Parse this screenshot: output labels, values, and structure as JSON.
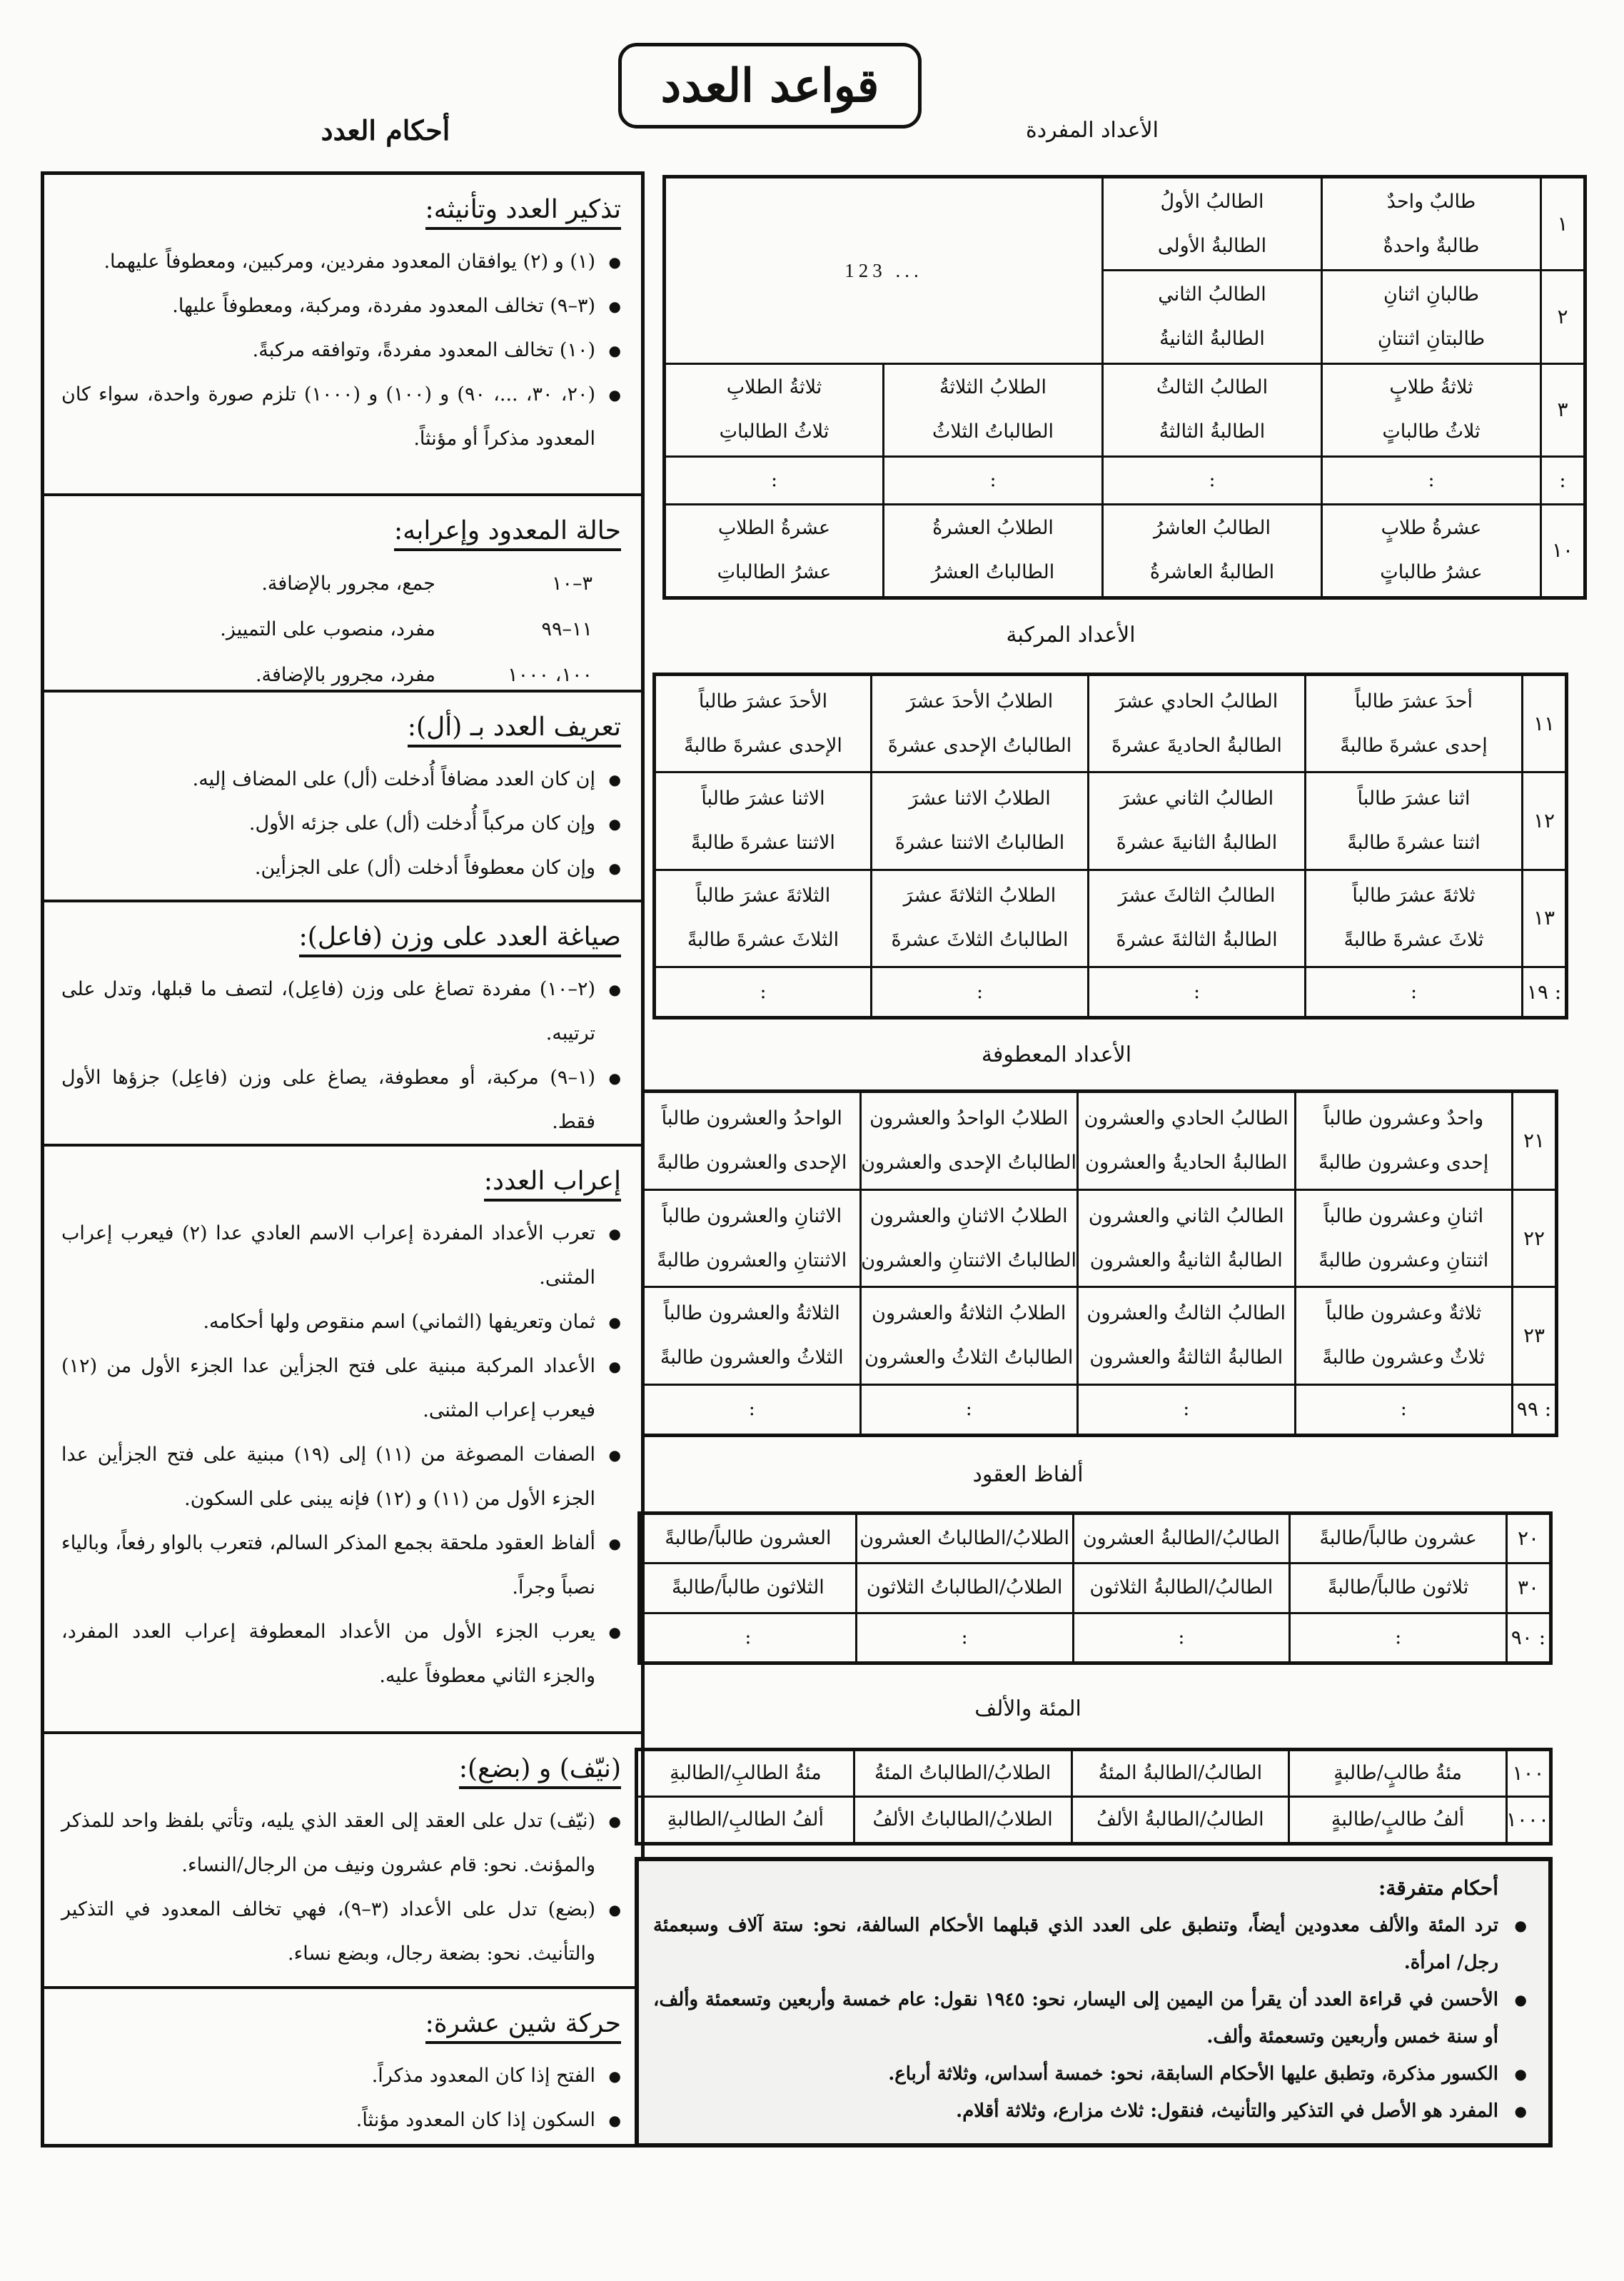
{
  "title": "قواعد العدد",
  "left_heading": "أحكام العدد",
  "headings": {
    "single": "الأعداد المفردة",
    "compound": "الأعداد المركبة",
    "conjoined": "الأعداد المعطوفة",
    "decades": "ألفاظ العقود",
    "hundred_thousand": "المئة والألف"
  },
  "big_numbers": "123 ...",
  "left_sections": [
    {
      "heading": "تذكير العدد وتأنيثه:",
      "bullets": [
        "(١) و (٢) يوافقان المعدود مفردين، ومركبين، ومعطوفاً عليهما.",
        "(٣–٩) تخالف المعدود مفردة، ومركبة، ومعطوفاً عليها.",
        "(١٠) تخالف المعدود مفردةً، وتوافقه مركبةً.",
        "(٢٠، ٣٠، ...، ٩٠) و (١٠٠) و (١٠٠٠) تلزم صورة واحدة، سواء كان المعدود مذكراً أو مؤنثاً."
      ]
    },
    {
      "heading": "حالة المعدود وإعرابه:",
      "rows": [
        [
          "٣–١٠",
          "جمع، مجرور بالإضافة."
        ],
        [
          "١١–٩٩",
          "مفرد، منصوب على التمييز."
        ],
        [
          "١٠٠، ١٠٠٠",
          "مفرد، مجرور بالإضافة."
        ]
      ]
    },
    {
      "heading": "تعريف العدد بـ (أل):",
      "bullets": [
        "إن كان العدد مضافاً أُدخلت (أل) على المضاف إليه.",
        "وإن كان مركباً أُدخلت (أل) على جزئه الأول.",
        "وإن كان معطوفاً أدخلت (أل) على الجزأين."
      ]
    },
    {
      "heading": "صياغة العدد على وزن (فاعل):",
      "bullets": [
        "(٢–١٠) مفردة تصاغ على وزن (فاعِل)، لتصف ما قبلها، وتدل على ترتيبه.",
        "(١–٩) مركبة، أو معطوفة، يصاغ على وزن (فاعِل) جزؤها الأول فقط."
      ]
    },
    {
      "heading": "إعراب العدد:",
      "bullets": [
        "تعرب الأعداد المفردة إعراب الاسم العادي عدا (٢) فيعرب إعراب المثنى.",
        "ثمان وتعريفها (الثماني) اسم منقوص ولها أحكامه.",
        "الأعداد المركبة مبنية على فتح الجزأين عدا الجزء الأول من (١٢) فيعرب إعراب المثنى.",
        "الصفات المصوغة من (١١) إلى (١٩) مبنية على فتح الجزأين عدا الجزء الأول من (١١) و (١٢) فإنه يبنى على السكون.",
        "ألفاظ العقود ملحقة بجمع المذكر السالم، فتعرب بالواو رفعاً، وبالياء نصباً وجراً.",
        "يعرب الجزء الأول من الأعداد المعطوفة إعراب العدد المفرد، والجزء الثاني معطوفاً عليه."
      ]
    },
    {
      "heading": "(نيّف) و (بضع):",
      "bullets": [
        "(نيّف) تدل على العقد إلى العقد الذي يليه، وتأتي بلفظ واحد للمذكر والمؤنث. نحو: قام عشرون ونيف من الرجال/النساء.",
        "(بضع) تدل على الأعداد (٣–٩)، فهي تخالف المعدود في التذكير والتأنيث. نحو: بضعة رجال، وبضع نساء."
      ]
    },
    {
      "heading": "حركة شين عشرة:",
      "bullets": [
        "الفتح إذا كان المعدود مذكراً.",
        "السكون إذا كان المعدود مؤنثاً."
      ]
    }
  ],
  "tables": {
    "single": [
      {
        "num": "١",
        "cells": [
          [
            "طالبٌ واحدٌ",
            "طالبةٌ واحدةٌ"
          ],
          [
            "الطالبُ الأولُ",
            "الطالبةُ الأولى"
          ]
        ]
      },
      {
        "num": "٢",
        "cells": [
          [
            "طالبانِ اثنانِ",
            "طالبتانِ اثنتانِ"
          ],
          [
            "الطالبُ الثاني",
            "الطالبةُ الثانيةُ"
          ]
        ]
      },
      {
        "num": "٣",
        "cells": [
          [
            "ثلاثةُ طلابٍ",
            "ثلاثُ طالباتٍ"
          ],
          [
            "الطالبُ الثالثُ",
            "الطالبةُ الثالثةُ"
          ],
          [
            "الطلابُ الثلاثةُ",
            "الطالباتُ الثلاثُ"
          ],
          [
            "ثلاثةُ الطلابِ",
            "ثلاثُ الطالباتِ"
          ]
        ]
      },
      {
        "num": ":",
        "cells": [
          [
            ":"
          ],
          [
            ":"
          ],
          [
            ":"
          ],
          [
            ":"
          ]
        ]
      },
      {
        "num": "١٠",
        "cells": [
          [
            "عشرةُ طلابٍ",
            "عشرُ طالباتٍ"
          ],
          [
            "الطالبُ العاشرُ",
            "الطالبةُ العاشرةُ"
          ],
          [
            "الطلابُ العشرةُ",
            "الطالباتُ العشرُ"
          ],
          [
            "عشرةُ الطلابِ",
            "عشرُ الطالباتِ"
          ]
        ]
      }
    ],
    "compound": [
      {
        "num": "١١",
        "cells": [
          [
            "أحدَ عشرَ طالباً",
            "إحدى عشرةَ طالبةً"
          ],
          [
            "الطالبُ الحادي عشرَ",
            "الطالبةُ الحاديةَ عشرةَ"
          ],
          [
            "الطلابُ الأحدَ عشرَ",
            "الطالباتُ الإحدى عشرةَ"
          ],
          [
            "الأحدَ عشرَ طالباً",
            "الإحدى عشرةَ طالبةً"
          ]
        ]
      },
      {
        "num": "١٢",
        "cells": [
          [
            "اثنا عشرَ طالباً",
            "اثنتا عشرةَ طالبةً"
          ],
          [
            "الطالبُ الثاني عشرَ",
            "الطالبةُ الثانيةَ عشرةَ"
          ],
          [
            "الطلابُ الاثنا عشرَ",
            "الطالباتُ الاثنتا عشرةَ"
          ],
          [
            "الاثنا عشرَ طالباً",
            "الاثنتا عشرةَ طالبةً"
          ]
        ]
      },
      {
        "num": "١٣",
        "cells": [
          [
            "ثلاثةَ عشرَ طالباً",
            "ثلاثَ عشرةَ طالبةً"
          ],
          [
            "الطالبُ الثالثَ عشرَ",
            "الطالبةُ الثالثةَ عشرةَ"
          ],
          [
            "الطلابُ الثلاثةَ عشرَ",
            "الطالباتُ الثلاثَ عشرةَ"
          ],
          [
            "الثلاثةَ عشرَ طالباً",
            "الثلاثَ عشرةَ طالبةً"
          ]
        ]
      },
      {
        "num": ": ١٩",
        "cells": [
          [
            ":"
          ],
          [
            ":"
          ],
          [
            ":"
          ],
          [
            ":"
          ]
        ]
      }
    ],
    "conjoined": [
      {
        "num": "٢١",
        "cells": [
          [
            "واحدٌ وعشرون طالباً",
            "إحدى وعشرون طالبةً"
          ],
          [
            "الطالبُ الحادي والعشرون",
            "الطالبةُ الحاديةُ والعشرون"
          ],
          [
            "الطلابُ الواحدُ والعشرون",
            "الطالباتُ الإحدى والعشرون"
          ],
          [
            "الواحدُ والعشرون طالباً",
            "الإحدى والعشرون طالبةً"
          ]
        ]
      },
      {
        "num": "٢٢",
        "cells": [
          [
            "اثنانِ وعشرون طالباً",
            "اثنتانِ وعشرون طالبةً"
          ],
          [
            "الطالبُ الثاني والعشرون",
            "الطالبةُ الثانيةُ والعشرون"
          ],
          [
            "الطلابُ الاثنانِ والعشرون",
            "الطالباتُ الاثنتانِ والعشرون"
          ],
          [
            "الاثنانِ والعشرون طالباً",
            "الاثنتانِ والعشرون طالبةً"
          ]
        ]
      },
      {
        "num": "٢٣",
        "cells": [
          [
            "ثلاثةٌ وعشرون طالباً",
            "ثلاثٌ وعشرون طالبةً"
          ],
          [
            "الطالبُ الثالثُ والعشرون",
            "الطالبةُ الثالثةُ والعشرون"
          ],
          [
            "الطلابُ الثلاثةُ والعشرون",
            "الطالباتُ الثلاثُ والعشرون"
          ],
          [
            "الثلاثةُ والعشرون طالباً",
            "الثلاثُ والعشرون طالبةً"
          ]
        ]
      },
      {
        "num": ": ٩٩",
        "cells": [
          [
            ":"
          ],
          [
            ":"
          ],
          [
            ":"
          ],
          [
            ":"
          ]
        ]
      }
    ],
    "decades": [
      {
        "num": "٢٠",
        "cells": [
          [
            "عشرون طالباً/طالبةً"
          ],
          [
            "الطالبُ/الطالبةُ العشرون"
          ],
          [
            "الطلابُ/الطالباتُ العشرون"
          ],
          [
            "العشرون طالباً/طالبةً"
          ]
        ]
      },
      {
        "num": "٣٠",
        "cells": [
          [
            "ثلاثون طالباً/طالبةً"
          ],
          [
            "الطالبُ/الطالبةُ الثلاثون"
          ],
          [
            "الطلابُ/الطالباتُ الثلاثون"
          ],
          [
            "الثلاثون طالباً/طالبةً"
          ]
        ]
      },
      {
        "num": ": ٩٠",
        "cells": [
          [
            ":"
          ],
          [
            ":"
          ],
          [
            ":"
          ],
          [
            ":"
          ]
        ]
      }
    ],
    "hundred_thousand": [
      {
        "num": "١٠٠",
        "cells": [
          [
            "مئةُ طالبٍ/طالبةٍ"
          ],
          [
            "الطالبُ/الطالبةُ المئةُ"
          ],
          [
            "الطلابُ/الطالباتُ المئةُ"
          ],
          [
            "مئةُ الطالبِ/الطالبةِ"
          ]
        ]
      },
      {
        "num": "١٠٠٠",
        "cells": [
          [
            "ألفُ طالبٍ/طالبةٍ"
          ],
          [
            "الطالبُ/الطالبةُ الألفُ"
          ],
          [
            "الطلابُ/الطالباتُ الألفُ"
          ],
          [
            "ألفُ الطالبِ/الطالبةِ"
          ]
        ]
      }
    ]
  },
  "misc": {
    "heading": "أحكام متفرقة:",
    "bullets": [
      "ترد المئة والألف معدودين أيضاً، وتنطبق على العدد الذي قبلهما الأحكام السالفة، نحو: ستة آلاف وسبعمئة رجل/ امرأة.",
      "الأحسن في قراءة العدد أن يقرأ من اليمين إلى اليسار، نحو: ١٩٤٥ نقول: عام خمسة وأربعين وتسعمئة وألف، أو سنة خمس وأربعين وتسعمئة وألف.",
      "الكسور مذكرة، وتطبق عليها الأحكام السابقة، نحو: خمسة أسداس، وثلاثة أرباع.",
      "المفرد هو الأصل في التذكير والتأنيث، فنقول: ثلاث مزارع، وثلاثة أقلام."
    ]
  }
}
